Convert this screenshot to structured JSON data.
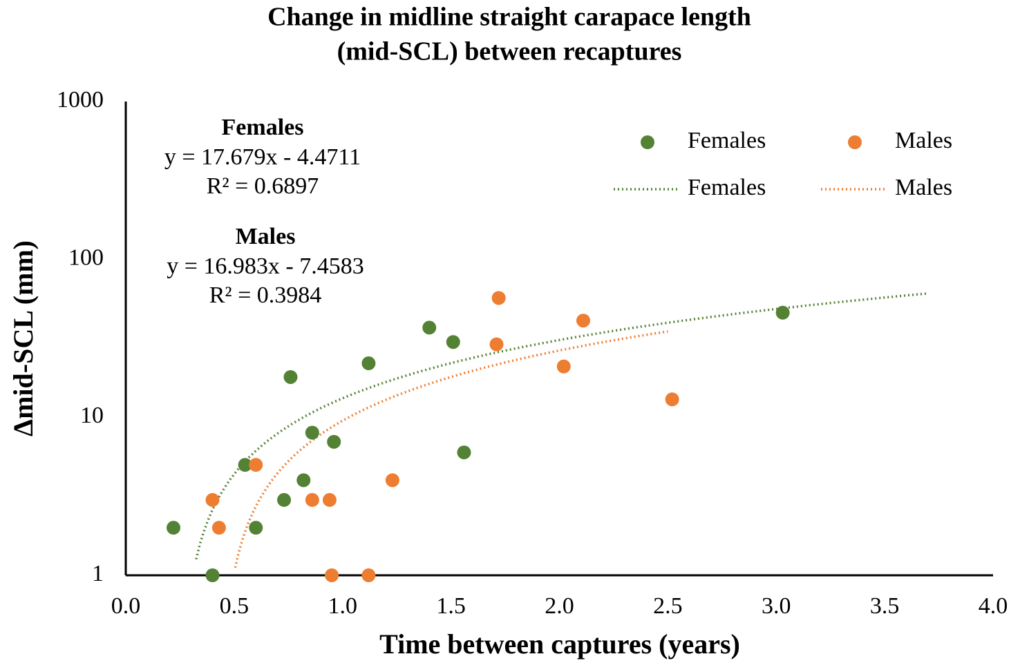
{
  "chart_data": {
    "type": "scatter",
    "title": [
      "Change in midline straight carapace length",
      "(mid-SCL) between recaptures"
    ],
    "x_label": "Time between captures (years)",
    "y_label": "Δmid-SCL (mm)",
    "xlim": [
      0,
      4
    ],
    "ylim": [
      1,
      1000
    ],
    "log_y": true,
    "grid": false,
    "legend": "top-right",
    "xticks": [
      {
        "value": 0,
        "label": "0.0"
      },
      0.5,
      {
        "value": 1,
        "label": "1.0"
      },
      1.5,
      {
        "value": 2,
        "label": "2.0"
      },
      2.5,
      {
        "value": 3,
        "label": "3.0"
      },
      3.5,
      {
        "value": 4,
        "label": "4.0"
      }
    ],
    "yticks": [
      1,
      10,
      100,
      1000
    ],
    "annotations": [
      {
        "title": "Females",
        "equation": "y = 17.679x - 4.4711",
        "r2": "R² = 0.6897"
      },
      {
        "title": "Males",
        "equation": "y = 16.983x - 7.4583",
        "r2": "R² = 0.3984"
      }
    ],
    "series": [
      {
        "name": "Females",
        "color": "#548235",
        "x": [
          0.22,
          0.4,
          0.55,
          0.6,
          0.73,
          0.76,
          0.82,
          0.86,
          0.96,
          1.12,
          1.4,
          1.51,
          1.56,
          3.03
        ],
        "values": [
          2,
          1,
          5,
          2,
          3,
          18,
          4,
          8,
          7,
          22,
          37,
          30,
          6,
          46
        ],
        "trendline": {
          "name": "Females",
          "slope": 17.679,
          "intercept": -4.4711,
          "x_range": [
            0.22,
            3.7
          ]
        }
      },
      {
        "name": "Males",
        "color": "#ed7d31",
        "x": [
          0.4,
          0.43,
          0.6,
          0.86,
          0.94,
          0.95,
          1.12,
          1.23,
          1.71,
          1.72,
          2.02,
          2.11,
          2.52
        ],
        "values": [
          3,
          2,
          5,
          3,
          3,
          1,
          1,
          4,
          29,
          57,
          21,
          41,
          13
        ],
        "trendline": {
          "name": "Males",
          "slope": 16.983,
          "intercept": -7.4583,
          "x_range": [
            0.4,
            2.5
          ]
        }
      }
    ]
  }
}
